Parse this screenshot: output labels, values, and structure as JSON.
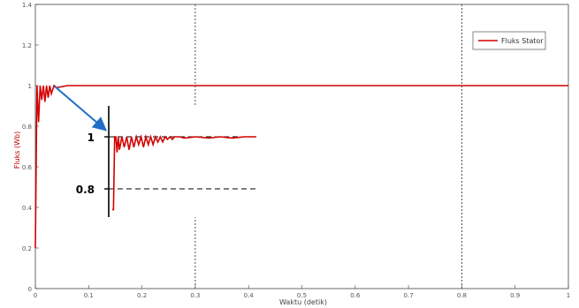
{
  "chart_data": {
    "type": "line",
    "xlabel": "Waktu (detik)",
    "ylabel": "Fluks (Wb)",
    "xlim": [
      0,
      1
    ],
    "ylim": [
      0,
      1.4
    ],
    "x_ticks": [
      "0",
      "0.1",
      "0.2",
      "0.3",
      "0.4",
      "0.5",
      "0.6",
      "0.7",
      "0.8",
      "0.9",
      "1"
    ],
    "y_ticks": [
      "0",
      "0.2",
      "0.4",
      "0.6",
      "0.8",
      "1",
      "1.2",
      "1.4"
    ],
    "legend_position": "top-right",
    "grid": "vertical dashed lines at x = 0.3 and x = 0.8",
    "series": [
      {
        "name": "Fluks Stator",
        "color": "#d40000",
        "steady_value": 1.0,
        "x": [
          0,
          0.003,
          0.006,
          0.009,
          0.012,
          0.015,
          0.018,
          0.021,
          0.024,
          0.027,
          0.03,
          0.035,
          0.04,
          0.06,
          0.1,
          0.2,
          0.3,
          0.4,
          0.5,
          0.6,
          0.7,
          0.8,
          0.9,
          1.0
        ],
        "y": [
          0.2,
          1.0,
          0.82,
          1.0,
          0.93,
          1.0,
          0.92,
          1.0,
          0.94,
          1.0,
          0.96,
          1.0,
          0.99,
          1.0,
          1.0,
          1.0,
          1.0,
          1.0,
          1.0,
          1.0,
          1.0,
          1.0,
          1.0,
          1.0
        ]
      }
    ],
    "inset": {
      "y_ticks": [
        "1",
        "0.8"
      ],
      "xlim": [
        0,
        0.06
      ],
      "ylim": [
        0.72,
        1.04
      ],
      "x": [
        0,
        0.0005,
        0.001,
        0.0015,
        0.002,
        0.0025,
        0.003,
        0.004,
        0.005,
        0.006,
        0.007,
        0.008,
        0.009,
        0.01,
        0.011,
        0.012,
        0.013,
        0.014,
        0.015,
        0.016,
        0.017,
        0.018,
        0.019,
        0.02,
        0.021,
        0.022,
        0.023,
        0.024,
        0.025,
        0.026,
        0.028,
        0.03,
        0.035,
        0.04,
        0.045,
        0.05,
        0.055,
        0.06
      ],
      "y": [
        0.72,
        0.72,
        1.0,
        1.0,
        0.94,
        1.0,
        0.95,
        1.0,
        0.96,
        1.0,
        0.95,
        1.0,
        0.96,
        1.0,
        0.97,
        1.0,
        0.96,
        1.0,
        0.97,
        1.0,
        0.97,
        1.0,
        0.98,
        1.0,
        0.98,
        1.0,
        0.99,
        1.0,
        0.99,
        1.0,
        1.0,
        0.995,
        1.0,
        0.995,
        1.0,
        0.995,
        1.0,
        1.0
      ]
    }
  }
}
